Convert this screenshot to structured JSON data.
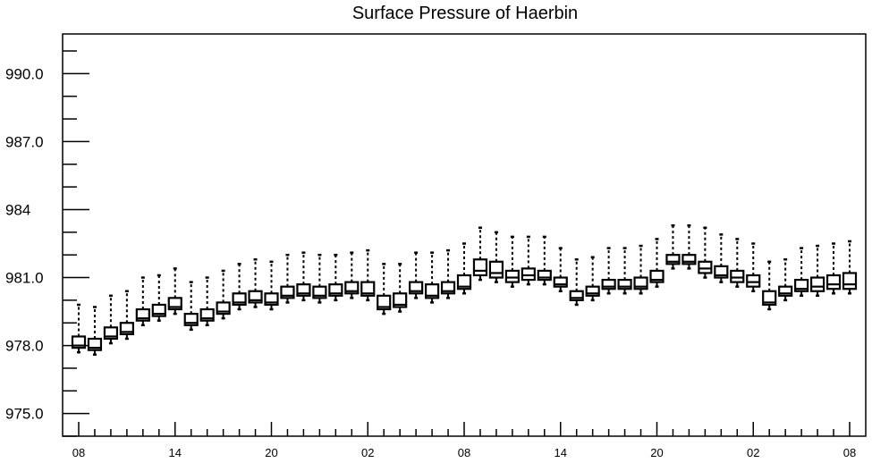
{
  "chart_data": {
    "type": "box",
    "title": "Surface Pressure of Haerbin",
    "xlabel": "",
    "ylabel": "",
    "ylim": [
      974.0,
      991.75
    ],
    "y_ticks": [
      975.0,
      978.0,
      981.0,
      984.0,
      987.0,
      990.0
    ],
    "y_tick_labels": [
      "975.0",
      "978.0",
      "981.0",
      984.0,
      "987.0",
      "990.0"
    ],
    "x_ticks": [
      {
        "index": 0,
        "label": "08"
      },
      {
        "index": 6,
        "label": "14"
      },
      {
        "index": 12,
        "label": "20"
      },
      {
        "index": 18,
        "label": "02"
      },
      {
        "index": 24,
        "label": "08"
      },
      {
        "index": 30,
        "label": "14"
      },
      {
        "index": 36,
        "label": "20"
      },
      {
        "index": 42,
        "label": "02"
      },
      {
        "index": 48,
        "label": "08"
      }
    ],
    "series": [
      {
        "min": [
          977.7,
          977.6,
          978.1,
          978.3,
          978.9,
          979.1,
          979.4,
          978.7,
          978.9,
          979.2,
          979.6,
          979.7,
          979.6,
          979.9,
          980.0,
          979.9,
          980.0,
          980.1,
          980.0,
          979.4,
          979.5,
          980.1,
          979.9,
          980.1,
          980.3,
          980.9,
          980.8,
          980.6,
          980.7,
          980.7,
          980.4,
          979.8,
          980.0,
          980.3,
          980.3,
          980.3,
          980.6,
          981.4,
          981.4,
          981.0,
          980.8,
          980.6,
          980.4,
          979.6,
          980.0,
          980.2,
          980.2,
          980.3,
          980.3
        ],
        "q1": [
          977.9,
          977.8,
          978.3,
          978.5,
          979.1,
          979.3,
          979.6,
          978.9,
          979.1,
          979.4,
          979.8,
          979.9,
          979.8,
          980.1,
          980.2,
          980.1,
          980.2,
          980.3,
          980.2,
          979.6,
          979.7,
          980.3,
          980.1,
          980.3,
          980.5,
          981.1,
          981.0,
          980.8,
          980.9,
          980.9,
          980.6,
          980.0,
          980.2,
          980.5,
          980.5,
          980.5,
          980.8,
          981.6,
          981.6,
          981.2,
          981.0,
          980.8,
          980.6,
          979.8,
          980.2,
          980.4,
          980.4,
          980.5,
          980.5
        ],
        "median": [
          978.0,
          977.9,
          978.4,
          978.6,
          979.2,
          979.4,
          979.7,
          979.0,
          979.2,
          979.5,
          979.9,
          980.0,
          979.9,
          980.2,
          980.3,
          980.2,
          980.3,
          980.4,
          980.3,
          979.7,
          979.8,
          980.4,
          980.2,
          980.4,
          980.6,
          981.3,
          981.2,
          981.0,
          981.1,
          981.0,
          980.7,
          980.1,
          980.3,
          980.6,
          980.6,
          980.6,
          980.9,
          981.7,
          981.7,
          981.4,
          981.1,
          981.0,
          980.8,
          979.9,
          980.3,
          980.5,
          980.6,
          980.7,
          980.7
        ],
        "q3": [
          978.4,
          978.3,
          978.8,
          979.0,
          979.6,
          979.8,
          980.1,
          979.4,
          979.6,
          979.9,
          980.3,
          980.4,
          980.3,
          980.6,
          980.7,
          980.6,
          980.7,
          980.8,
          980.8,
          980.2,
          980.3,
          980.8,
          980.7,
          980.8,
          981.1,
          981.8,
          981.7,
          981.3,
          981.4,
          981.3,
          981.0,
          980.4,
          980.6,
          980.9,
          980.9,
          981.0,
          981.3,
          982.0,
          982.0,
          981.7,
          981.5,
          981.3,
          981.1,
          980.4,
          980.6,
          980.9,
          981.0,
          981.1,
          981.2
        ],
        "max": [
          979.8,
          979.7,
          980.2,
          980.4,
          981.0,
          981.1,
          981.4,
          980.8,
          981.0,
          981.3,
          981.6,
          981.8,
          981.7,
          982.0,
          982.1,
          982.0,
          982.0,
          982.1,
          982.2,
          981.6,
          981.6,
          982.1,
          982.1,
          982.2,
          982.5,
          983.2,
          983.0,
          982.8,
          982.8,
          982.8,
          982.3,
          981.8,
          981.9,
          982.3,
          982.3,
          982.4,
          982.7,
          983.3,
          983.3,
          983.2,
          982.9,
          982.7,
          982.5,
          981.7,
          981.8,
          982.3,
          982.4,
          982.5,
          982.6
        ]
      }
    ]
  }
}
